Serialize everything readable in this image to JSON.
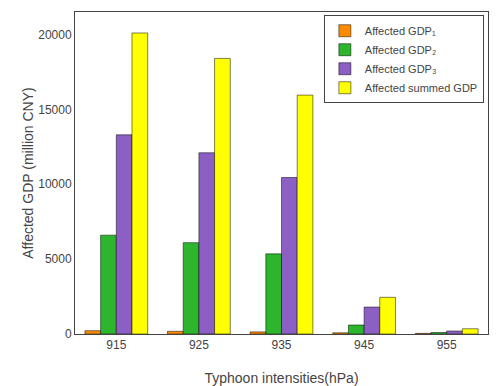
{
  "chart_data": {
    "type": "bar",
    "xlabel": "Typhoon intensities(hPa)",
    "ylabel": "Affected GDP (million CNY)",
    "categories": [
      "915",
      "925",
      "935",
      "945",
      "955"
    ],
    "series": [
      {
        "name": "Affected GDP₁",
        "color": "#FF8C00",
        "values": [
          220,
          180,
          140,
          80,
          40
        ]
      },
      {
        "name": "Affected GDP₂",
        "color": "#2DB52D",
        "values": [
          6600,
          6100,
          5350,
          600,
          100
        ]
      },
      {
        "name": "Affected GDP₃",
        "color": "#8B5FC4",
        "values": [
          13300,
          12100,
          10450,
          1800,
          200
        ]
      },
      {
        "name": "Affected summed GDP",
        "color": "#FFFF00",
        "values": [
          20100,
          18400,
          15950,
          2450,
          350
        ]
      }
    ],
    "ylim": [
      0,
      21500
    ],
    "yticks": [
      0,
      5000,
      10000,
      15000,
      20000
    ],
    "grid": false,
    "legend": "upper right"
  }
}
